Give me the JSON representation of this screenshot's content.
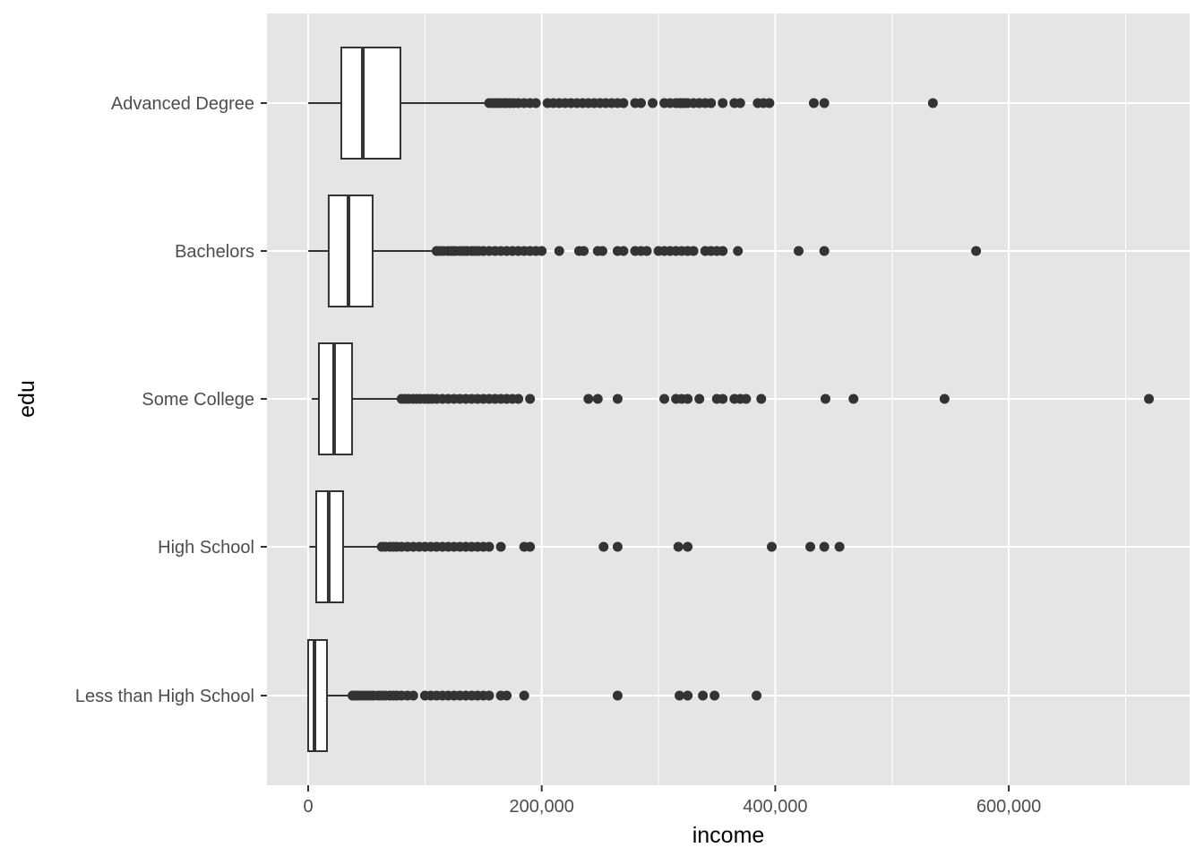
{
  "chart_data": {
    "type": "boxplot",
    "orientation": "horizontal",
    "title": "",
    "xlabel": "income",
    "ylabel": "edu",
    "xlim": [
      -35000,
      755000
    ],
    "x_ticks": [
      0,
      200000,
      400000,
      600000
    ],
    "x_tick_labels": [
      "0",
      "200,000",
      "400,000",
      "600,000"
    ],
    "grid": true,
    "categories": [
      "Advanced Degree",
      "Bachelors",
      "Some College",
      "High School",
      "Less than High School"
    ],
    "boxes": [
      {
        "category": "Advanced Degree",
        "whisker_low": 0,
        "q1": 28400,
        "median": 46800,
        "q3": 79000,
        "whisker_high": 154000,
        "outliers_k": [
          155,
          158,
          160,
          163,
          165,
          168,
          170,
          173,
          176,
          180,
          185,
          190,
          195,
          205,
          210,
          215,
          220,
          225,
          230,
          235,
          240,
          245,
          250,
          255,
          260,
          265,
          270,
          280,
          285,
          295,
          305,
          310,
          315,
          318,
          320,
          322,
          325,
          330,
          335,
          340,
          345,
          355,
          365,
          370,
          385,
          390,
          395,
          433,
          442,
          535
        ]
      },
      {
        "category": "Bachelors",
        "whisker_low": 0,
        "q1": 17600,
        "median": 34500,
        "q3": 55200,
        "whisker_high": 108000,
        "outliers_k": [
          110,
          113,
          116,
          120,
          123,
          126,
          130,
          133,
          136,
          140,
          143,
          146,
          150,
          155,
          160,
          165,
          170,
          175,
          180,
          185,
          190,
          195,
          200,
          215,
          232,
          236,
          248,
          252,
          265,
          270,
          280,
          285,
          290,
          300,
          305,
          310,
          315,
          320,
          325,
          330,
          340,
          345,
          350,
          355,
          368,
          420,
          442,
          572
        ]
      },
      {
        "category": "Some College",
        "whisker_low": 3000,
        "q1": 9200,
        "median": 22200,
        "q3": 37600,
        "whisker_high": 78000,
        "outliers_k": [
          80,
          83,
          86,
          90,
          93,
          96,
          100,
          103,
          106,
          110,
          115,
          120,
          125,
          130,
          135,
          140,
          145,
          150,
          155,
          160,
          165,
          170,
          175,
          180,
          190,
          240,
          248,
          265,
          305,
          315,
          320,
          325,
          335,
          350,
          355,
          365,
          370,
          375,
          388,
          443,
          467,
          545,
          720
        ]
      },
      {
        "category": "High School",
        "whisker_low": 1000,
        "q1": 6900,
        "median": 17600,
        "q3": 29900,
        "whisker_high": 62000,
        "outliers_k": [
          63,
          66,
          70,
          73,
          76,
          80,
          85,
          90,
          95,
          100,
          105,
          110,
          115,
          120,
          125,
          130,
          135,
          140,
          145,
          150,
          155,
          165,
          185,
          190,
          253,
          265,
          317,
          325,
          397,
          430,
          442,
          455
        ]
      },
      {
        "category": "Less than High School",
        "whisker_low": 0,
        "q1": 0,
        "median": 5400,
        "q3": 16100,
        "whisker_high": 37600,
        "outliers_k": [
          38,
          40,
          42,
          45,
          48,
          50,
          53,
          56,
          60,
          63,
          66,
          70,
          73,
          76,
          80,
          85,
          90,
          100,
          105,
          110,
          115,
          120,
          125,
          130,
          135,
          140,
          145,
          150,
          155,
          165,
          170,
          185,
          265,
          318,
          325,
          338,
          348,
          384
        ]
      }
    ],
    "colors": {
      "panel": "#e5e5e5",
      "grid": "#ffffff",
      "box_fill": "#ffffff",
      "box_line": "#333333",
      "point": "#333333"
    }
  }
}
